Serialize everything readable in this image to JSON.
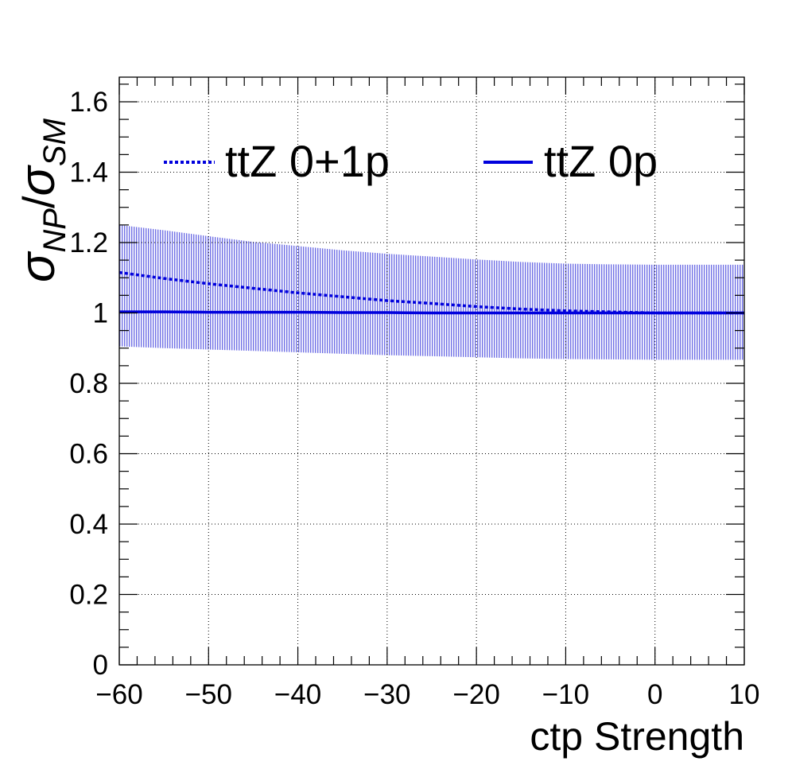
{
  "chart_data": {
    "type": "line",
    "xlabel": "ctp Strength",
    "ylabel": {
      "sigma": "σ",
      "num_sub": "NP",
      "slash": "/",
      "den_sub": "SM"
    },
    "xlim": [
      -60,
      10
    ],
    "ylim": [
      0,
      1.67
    ],
    "xticks": [
      -60,
      -50,
      -40,
      -30,
      -20,
      -10,
      0,
      10
    ],
    "xtick_labels": [
      "−60",
      "−50",
      "−40",
      "−30",
      "−20",
      "−10",
      "0",
      "10"
    ],
    "yticks": [
      0,
      0.2,
      0.4,
      0.6,
      0.8,
      1,
      1.2,
      1.4,
      1.6
    ],
    "ytick_labels": [
      "0",
      "0.2",
      "0.4",
      "0.6",
      "0.8",
      "1",
      "1.2",
      "1.4",
      "1.6"
    ],
    "grid": true,
    "legend_position": "top",
    "colors": {
      "series": "#0000dd",
      "band": "#7070e6"
    },
    "x": [
      -60,
      -55,
      -50,
      -45,
      -40,
      -35,
      -30,
      -25,
      -20,
      -15,
      -10,
      -5,
      0,
      5,
      10
    ],
    "series": [
      {
        "name": "ttZ 0+1p",
        "style": "dotted",
        "values": [
          1.115,
          1.098,
          1.083,
          1.07,
          1.057,
          1.046,
          1.035,
          1.027,
          1.018,
          1.011,
          1.006,
          1.003,
          1.0,
          1.0,
          1.0
        ],
        "band_upper": [
          1.25,
          1.235,
          1.218,
          1.202,
          1.19,
          1.178,
          1.168,
          1.16,
          1.152,
          1.145,
          1.14,
          1.138,
          1.137,
          1.137,
          1.137
        ],
        "band_lower": [
          0.905,
          0.9,
          0.896,
          0.892,
          0.888,
          0.884,
          0.88,
          0.877,
          0.874,
          0.871,
          0.869,
          0.868,
          0.867,
          0.867,
          0.867
        ]
      },
      {
        "name": "ttZ 0p",
        "style": "solid",
        "values": [
          1.003,
          1.003,
          1.002,
          1.002,
          1.002,
          1.001,
          1.001,
          1.0,
          1.0,
          1.0,
          1.0,
          1.0,
          1.0,
          1.0,
          1.0
        ]
      }
    ]
  }
}
